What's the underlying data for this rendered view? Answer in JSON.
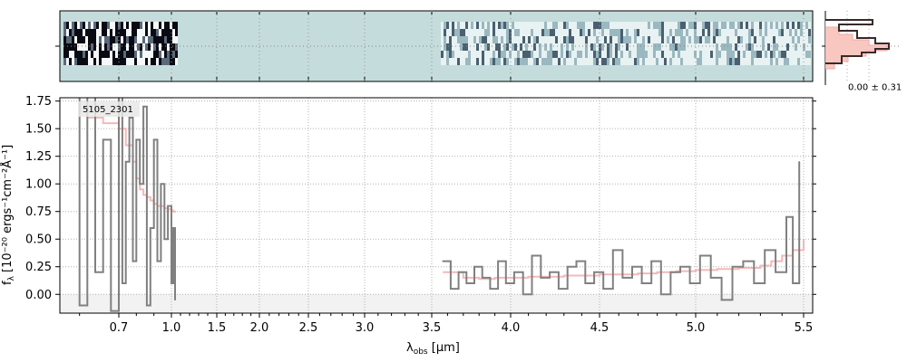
{
  "chart_data": {
    "type": "line",
    "object_id": "5105_2301",
    "xlabel": "λ",
    "xlabel_sub": "obs",
    "xlabel_unit": "[μm]",
    "ylabel": "f",
    "ylabel_sub": "λ",
    "ylabel_unit": "[10⁻²⁰ ergs⁻¹cm⁻²Å⁻¹]",
    "ylim": [
      -0.17,
      1.78
    ],
    "x_ticks": [
      "0.7",
      "1.0",
      "1.5",
      "2.0",
      "2.5",
      "3.0",
      "3.5",
      "4.0",
      "4.5",
      "5.0",
      "5.5"
    ],
    "y_ticks": [
      "0.00",
      "0.25",
      "0.50",
      "0.75",
      "1.00",
      "1.25",
      "1.50",
      "1.75"
    ],
    "grid": true,
    "hist_label": "0.00 ± 0.31",
    "colors": {
      "data": "#808080",
      "model": "#f4a6a6",
      "image_bg": "#c5dcdc",
      "grid": "#b0b0b0"
    },
    "series": [
      {
        "name": "",
        "x": [
          0.58,
          0.6,
          0.62,
          0.64,
          0.66,
          0.68,
          0.7,
          0.72,
          0.74,
          0.76,
          0.78,
          0.8,
          0.82,
          0.84,
          0.86,
          0.88,
          0.9,
          0.92,
          0.94,
          0.96,
          0.98,
          1.0,
          1.02,
          1.04,
          3.57,
          3.62,
          3.67,
          3.72,
          3.77,
          3.82,
          3.87,
          3.92,
          3.97,
          4.02,
          4.07,
          4.12,
          4.17,
          4.22,
          4.27,
          4.32,
          4.37,
          4.42,
          4.47,
          4.52,
          4.57,
          4.62,
          4.67,
          4.72,
          4.77,
          4.82,
          4.87,
          4.92,
          4.97,
          5.02,
          5.07,
          5.12,
          5.17,
          5.22,
          5.27,
          5.32,
          5.37,
          5.42,
          5.45,
          5.48
        ],
        "values": [
          1.8,
          -0.1,
          1.8,
          0.2,
          1.4,
          -0.15,
          1.8,
          0.1,
          1.2,
          1.6,
          0.3,
          1.4,
          1.0,
          1.7,
          -0.1,
          0.6,
          1.4,
          0.3,
          1.0,
          0.5,
          0.8,
          0.1,
          0.6,
          -0.05,
          0.3,
          0.05,
          0.2,
          0.1,
          0.25,
          0.15,
          0.05,
          0.3,
          0.1,
          0.2,
          0.0,
          0.35,
          0.15,
          0.2,
          0.05,
          0.25,
          0.3,
          0.1,
          0.2,
          0.05,
          0.4,
          0.15,
          0.25,
          0.1,
          0.3,
          0.0,
          0.2,
          0.25,
          0.1,
          0.35,
          0.15,
          -0.05,
          0.25,
          0.3,
          0.1,
          0.4,
          0.2,
          0.7,
          0.1,
          1.2
        ]
      },
      {
        "name": "",
        "x": [
          0.62,
          0.66,
          0.7,
          0.74,
          0.78,
          0.8,
          0.82,
          0.84,
          0.86,
          0.88,
          0.9,
          0.92,
          0.94,
          0.96,
          0.98,
          1.0,
          1.02,
          1.04,
          3.57,
          3.7,
          3.8,
          3.9,
          4.0,
          4.1,
          4.2,
          4.3,
          4.4,
          4.5,
          4.6,
          4.7,
          4.8,
          4.9,
          5.0,
          5.1,
          5.2,
          5.3,
          5.35,
          5.4,
          5.45,
          5.5
        ],
        "values": [
          1.6,
          1.55,
          1.5,
          1.35,
          1.2,
          1.05,
          0.95,
          0.9,
          0.88,
          0.85,
          0.82,
          0.8,
          0.8,
          0.78,
          0.77,
          0.76,
          0.75,
          0.74,
          0.2,
          0.15,
          0.14,
          0.15,
          0.15,
          0.16,
          0.16,
          0.17,
          0.17,
          0.18,
          0.18,
          0.19,
          0.2,
          0.21,
          0.22,
          0.23,
          0.24,
          0.26,
          0.3,
          0.35,
          0.4,
          0.5
        ]
      }
    ]
  }
}
